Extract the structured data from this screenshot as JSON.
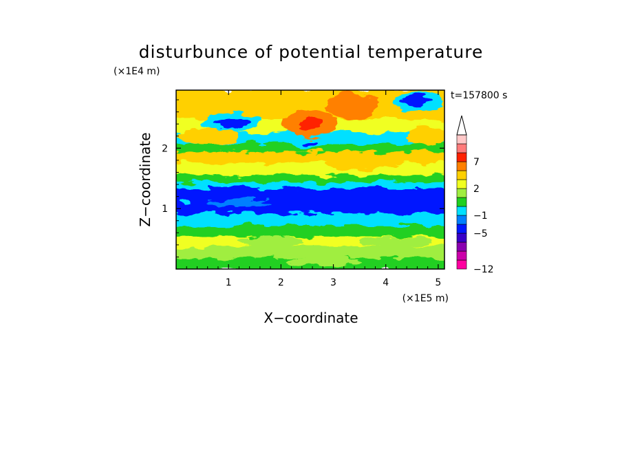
{
  "chart_data": {
    "type": "heatmap",
    "title": "disturbunce of potential temperature",
    "time_label": "t=157800 s",
    "xlabel": "X−coordinate",
    "ylabel": "Z−coordinate",
    "x_unit": "(×1E5 m)",
    "y_unit": "(×1E4 m)",
    "xlim": [
      0,
      5.12
    ],
    "ylim": [
      0,
      2.96
    ],
    "x_ticks": [
      1,
      2,
      3,
      4,
      5
    ],
    "y_ticks": [
      1,
      2
    ],
    "x_tick_labels": [
      "1",
      "2",
      "3",
      "4",
      "5"
    ],
    "y_tick_labels": [
      "1",
      "2"
    ],
    "colorbar": {
      "levels": [
        -12,
        -11,
        -9,
        -7,
        -5,
        -3,
        -1,
        0,
        1,
        2,
        3,
        5,
        7,
        9,
        11
      ],
      "labeled": [
        {
          "value": 7,
          "label": "7"
        },
        {
          "value": 2,
          "label": "2"
        },
        {
          "value": -1,
          "label": "−1"
        },
        {
          "value": -5,
          "label": "−5"
        },
        {
          "value": -12,
          "label": "−12"
        }
      ],
      "colors": [
        "#ff00a0",
        "#cc00aa",
        "#8a00b0",
        "#3800c8",
        "#0018ff",
        "#0080ff",
        "#00e0ff",
        "#20d020",
        "#a0ee40",
        "#f0ff20",
        "#ffd000",
        "#ff8000",
        "#ff2000",
        "#ff7a7a",
        "#ffc8c8"
      ],
      "extend": "max"
    },
    "bands": [
      {
        "z0": 0.0,
        "z1": 0.2,
        "color": "#20d020"
      },
      {
        "z0": 0.2,
        "z1": 0.4,
        "color": "#a0ee40"
      },
      {
        "z0": 0.4,
        "z1": 0.56,
        "color": "#f0ff20"
      },
      {
        "z0": 0.56,
        "z1": 0.74,
        "color": "#20d020"
      },
      {
        "z0": 0.74,
        "z1": 0.94,
        "color": "#00e0ff"
      },
      {
        "z0": 0.94,
        "z1": 1.36,
        "color": "#0018ff"
      },
      {
        "z0": 1.36,
        "z1": 1.46,
        "color": "#00e0ff"
      },
      {
        "z0": 1.46,
        "z1": 1.58,
        "color": "#20d020"
      },
      {
        "z0": 1.58,
        "z1": 1.78,
        "color": "#f0ff20"
      },
      {
        "z0": 1.78,
        "z1": 1.96,
        "color": "#ffd000"
      },
      {
        "z0": 1.96,
        "z1": 2.1,
        "color": "#20d020"
      },
      {
        "z0": 2.1,
        "z1": 2.28,
        "color": "#00e0ff"
      },
      {
        "z0": 2.28,
        "z1": 2.5,
        "color": "#f0ff20"
      },
      {
        "z0": 2.5,
        "z1": 2.96,
        "color": "#ffd000"
      }
    ],
    "features": [
      {
        "x": 2.55,
        "z": 2.4,
        "rx": 0.55,
        "rz": 0.22,
        "color": "#ff8000"
      },
      {
        "x": 2.55,
        "z": 2.42,
        "rx": 0.2,
        "rz": 0.1,
        "color": "#ff2000"
      },
      {
        "x": 3.35,
        "z": 2.7,
        "rx": 0.5,
        "rz": 0.22,
        "color": "#ff8000"
      },
      {
        "x": 1.05,
        "z": 2.42,
        "rx": 0.55,
        "rz": 0.16,
        "color": "#00e0ff"
      },
      {
        "x": 1.05,
        "z": 2.42,
        "rx": 0.35,
        "rz": 0.09,
        "color": "#0018ff"
      },
      {
        "x": 2.55,
        "z": 2.07,
        "rx": 0.35,
        "rz": 0.1,
        "color": "#00e0ff"
      },
      {
        "x": 2.55,
        "z": 2.07,
        "rx": 0.15,
        "rz": 0.06,
        "color": "#0018ff"
      },
      {
        "x": 4.65,
        "z": 2.76,
        "rx": 0.5,
        "rz": 0.16,
        "color": "#00e0ff"
      },
      {
        "x": 4.6,
        "z": 2.78,
        "rx": 0.3,
        "rz": 0.09,
        "color": "#0018ff"
      },
      {
        "x": 0.6,
        "z": 2.2,
        "rx": 0.6,
        "rz": 0.13,
        "color": "#ffd000"
      },
      {
        "x": 4.8,
        "z": 2.2,
        "rx": 0.4,
        "rz": 0.16,
        "color": "#ffd000"
      },
      {
        "x": 3.5,
        "z": 1.73,
        "rx": 0.7,
        "rz": 0.08,
        "color": "#ffd000"
      },
      {
        "x": 1.2,
        "z": 1.1,
        "rx": 0.6,
        "rz": 0.07,
        "color": "#0080ff"
      },
      {
        "x": 0.15,
        "z": 1.1,
        "rx": 0.12,
        "rz": 0.06,
        "color": "#00e0ff"
      },
      {
        "x": 1.8,
        "z": 0.45,
        "rx": 0.6,
        "rz": 0.1,
        "color": "#a0ee40"
      },
      {
        "x": 4.2,
        "z": 0.45,
        "rx": 0.7,
        "rz": 0.08,
        "color": "#a0ee40"
      },
      {
        "x": 2.8,
        "z": 0.12,
        "rx": 0.7,
        "rz": 0.07,
        "color": "#a0ee40"
      }
    ]
  }
}
